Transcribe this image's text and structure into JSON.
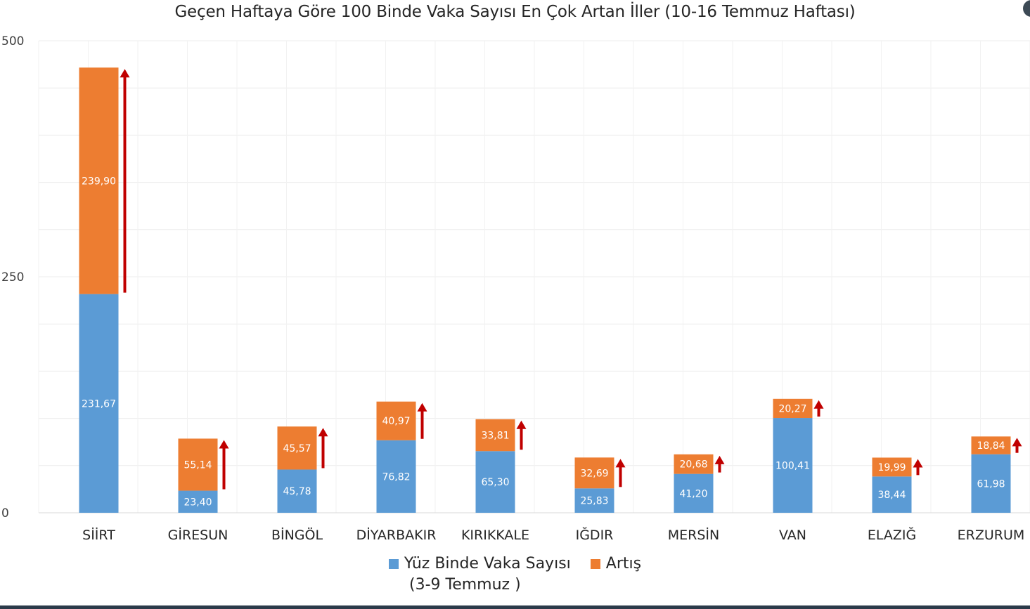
{
  "chart_data": {
    "type": "bar",
    "title": "Geçen Haftaya Göre 100 Binde Vaka Sayısı En Çok Artan İller (10-16 Temmuz Haftası)",
    "categories": [
      "SİİRT",
      "GİRESUN",
      "BİNGÖL",
      "DİYARBAKIR",
      "KIRIKKALE",
      "IĞDIR",
      "MERSİN",
      "VAN",
      "ELAZIĞ",
      "ERZURUM"
    ],
    "series": [
      {
        "name": "Yüz Binde Vaka Sayısı (3-9 Temmuz )",
        "values": [
          231.67,
          23.4,
          45.78,
          76.82,
          65.3,
          25.83,
          41.2,
          100.41,
          38.44,
          61.98
        ],
        "labels": [
          "231,67",
          "23,40",
          "45,78",
          "76,82",
          "65,30",
          "25,83",
          "41,20",
          "100,41",
          "38,44",
          "61,98"
        ],
        "color": "#5b9bd5"
      },
      {
        "name": "Artış",
        "values": [
          239.9,
          55.14,
          45.57,
          40.97,
          33.81,
          32.69,
          20.68,
          20.27,
          19.99,
          18.84
        ],
        "labels": [
          "239,90",
          "55,14",
          "45,57",
          "40,97",
          "33,81",
          "32,69",
          "20,68",
          "20,27",
          "19,99",
          "18,84"
        ],
        "color": "#ed7d31"
      }
    ],
    "stacked": true,
    "ylim": [
      0,
      500
    ],
    "yticks": [
      "0",
      "250",
      "500"
    ],
    "ytick_values": [
      0,
      250,
      500
    ],
    "grid": true,
    "arrow_color": "#c00000",
    "legend_position": "bottom",
    "legend": {
      "item1_line1": "Yüz Binde Vaka Sayısı",
      "item1_line2": "(3-9 Temmuz )",
      "item2": "Artış"
    }
  }
}
